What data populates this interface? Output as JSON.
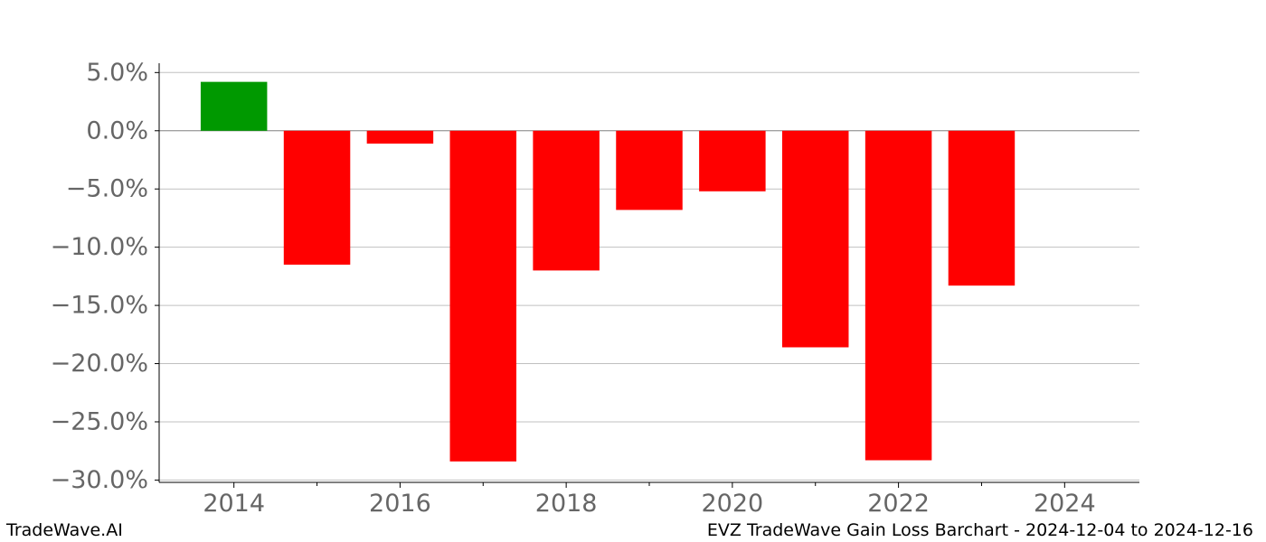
{
  "chart_data": {
    "type": "bar",
    "x": [
      2014,
      2015,
      2016,
      2017,
      2018,
      2019,
      2020,
      2021,
      2022,
      2023
    ],
    "values": [
      4.2,
      -11.5,
      -1.1,
      -28.4,
      -12.0,
      -6.8,
      -5.2,
      -18.6,
      -28.3,
      -13.3
    ],
    "xlim": [
      2013.1,
      2024.9
    ],
    "ylim": [
      -30.2,
      5.8
    ],
    "xticks": [
      2014,
      2016,
      2018,
      2020,
      2022,
      2024
    ],
    "xtick_labels": [
      "2014",
      "2016",
      "2018",
      "2020",
      "2022",
      "2024"
    ],
    "xminor_ticks": [
      2015,
      2017,
      2019,
      2021,
      2023
    ],
    "yticks": [
      5,
      0,
      -5,
      -10,
      -15,
      -20,
      -25,
      -30
    ],
    "ytick_labels": [
      "5.0%",
      "0.0%",
      "−5.0%",
      "−10.0%",
      "−15.0%",
      "−20.0%",
      "−25.0%",
      "−30.0%"
    ],
    "grid": "y",
    "colors": {
      "gain": "#009900",
      "loss": "#ff0000",
      "grid": "#c0c0c0",
      "zero_line": "#808080",
      "tick_label": "#666666"
    }
  },
  "footer": {
    "brand": "TradeWave.AI",
    "caption": "EVZ TradeWave Gain Loss Barchart - 2024-12-04 to 2024-12-16"
  }
}
